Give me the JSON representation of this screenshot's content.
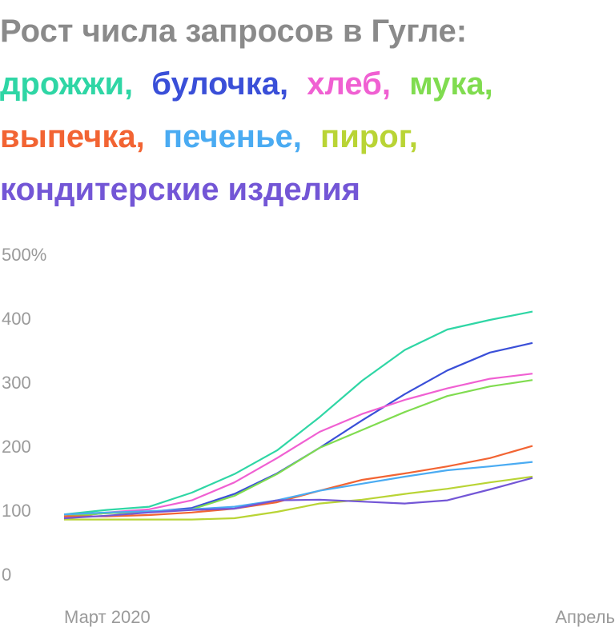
{
  "chart_data": {
    "type": "line",
    "title": "Рост числа запросов в Гугле:",
    "title_separator": ",",
    "categories": [
      "Март 2020",
      null,
      null,
      null,
      null,
      null,
      null,
      null,
      null,
      null,
      null,
      "Апрель"
    ],
    "series": [
      {
        "name": "дрожжи",
        "color": "#2fd6a5",
        "values": [
          96,
          103,
          108,
          130,
          159,
          196,
          248,
          305,
          353,
          385,
          400,
          413
        ]
      },
      {
        "name": "булочка",
        "color": "#3a4fd8",
        "values": [
          93,
          98,
          100,
          106,
          128,
          160,
          200,
          243,
          284,
          321,
          349,
          364
        ]
      },
      {
        "name": "хлеб",
        "color": "#f060d2",
        "values": [
          91,
          99,
          104,
          118,
          146,
          184,
          225,
          253,
          275,
          293,
          308,
          316
        ]
      },
      {
        "name": "мука",
        "color": "#80dc50",
        "values": [
          93,
          98,
          100,
          104,
          125,
          159,
          200,
          228,
          256,
          281,
          296,
          306
        ]
      },
      {
        "name": "выпечка",
        "color": "#f26433",
        "values": [
          93,
          93,
          95,
          99,
          105,
          115,
          133,
          150,
          160,
          171,
          184,
          203
        ]
      },
      {
        "name": "печенье",
        "color": "#4aabf2",
        "values": [
          96,
          99,
          101,
          104,
          108,
          118,
          133,
          144,
          155,
          165,
          171,
          178
        ]
      },
      {
        "name": "пирог",
        "color": "#b9d435",
        "values": [
          88,
          88,
          88,
          88,
          90,
          100,
          113,
          119,
          128,
          136,
          146,
          155
        ]
      },
      {
        "name": "кондитерские изделия",
        "color": "#7356d6",
        "values": [
          90,
          94,
          99,
          103,
          105,
          118,
          119,
          116,
          113,
          118,
          135,
          153
        ]
      }
    ],
    "ylim": [
      0,
      500
    ],
    "yticks": [
      0,
      100,
      200,
      300,
      400,
      {
        "value": 500,
        "label": "500%"
      }
    ],
    "grid": false
  }
}
